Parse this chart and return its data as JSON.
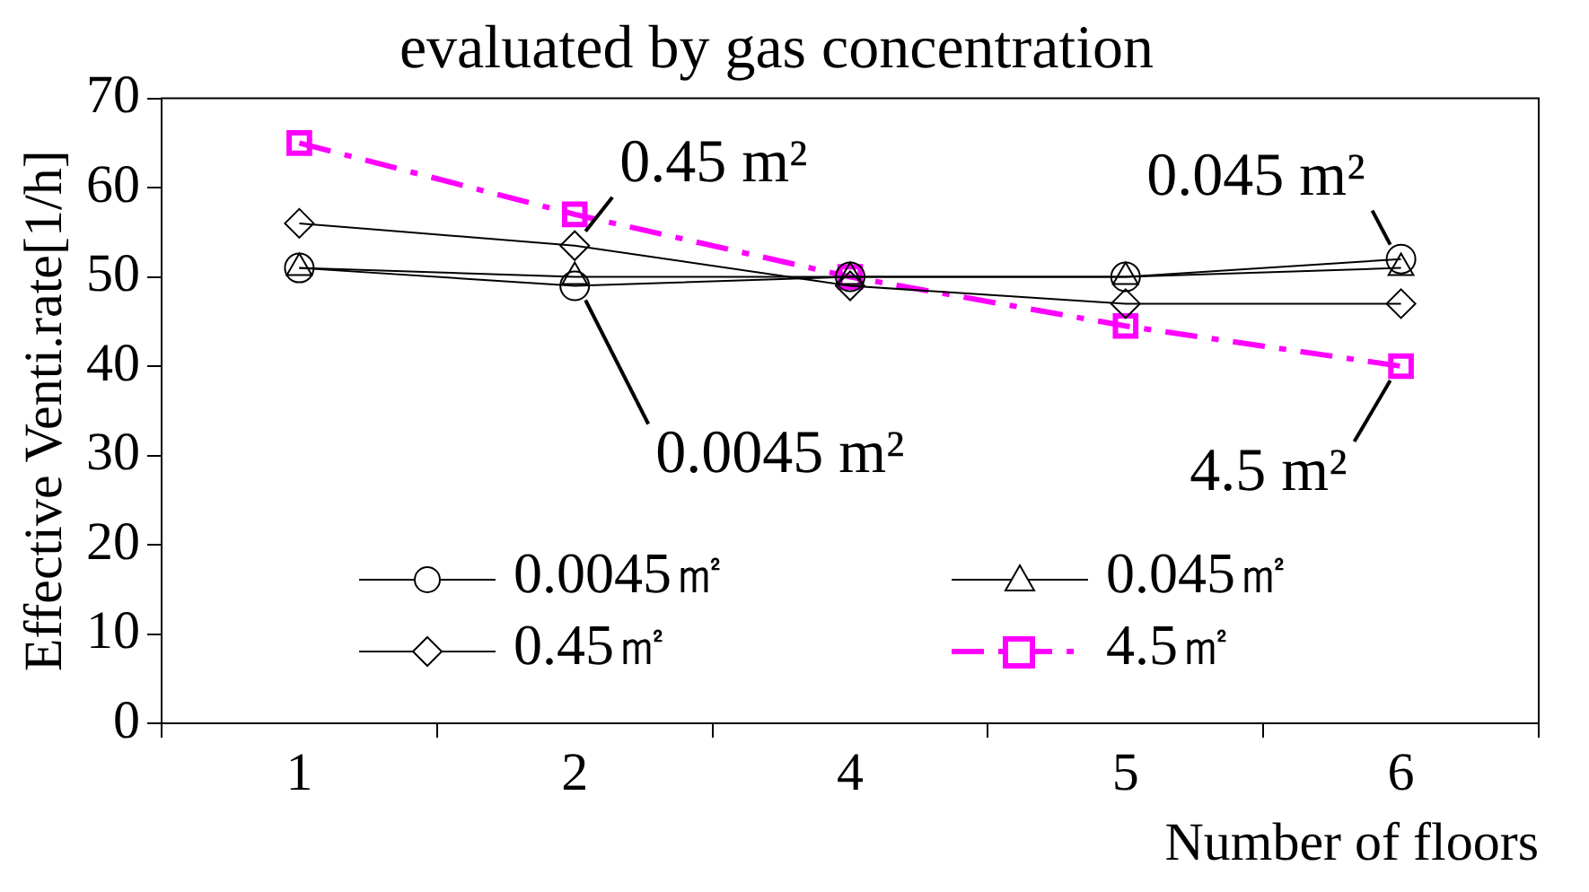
{
  "chart_data": {
    "type": "line",
    "title": "evaluated by gas concentration",
    "xlabel": "Number of floors",
    "ylabel": "Effective Venti.rate[1/h]",
    "categories": [
      "1",
      "2",
      "4",
      "5",
      "6"
    ],
    "series": [
      {
        "name": "0.0045㎡",
        "color": "#000000",
        "marker": "circle",
        "line_style": "solid",
        "values": [
          51,
          49,
          50,
          50,
          52
        ]
      },
      {
        "name": "0.045㎡",
        "color": "#000000",
        "marker": "triangle",
        "line_style": "solid",
        "values": [
          51,
          50,
          50,
          50,
          51
        ]
      },
      {
        "name": "0.45㎡",
        "color": "#000000",
        "marker": "diamond",
        "line_style": "solid",
        "values": [
          56,
          53.5,
          49,
          47,
          47
        ]
      },
      {
        "name": "4.5㎡",
        "color": "#ff00ff",
        "marker": "square",
        "line_style": "dashed",
        "values": [
          65,
          57,
          50,
          44.5,
          40
        ]
      }
    ],
    "annotations": [
      {
        "text": "0.45 m²",
        "x": "2",
        "y": 53.5
      },
      {
        "text": "0.045 m²",
        "x": "6",
        "y": 52
      },
      {
        "text": "0.0045 m²",
        "x": "2",
        "y": 49
      },
      {
        "text": "4.5 m²",
        "x": "6",
        "y": 40
      }
    ],
    "ylim": [
      0,
      70
    ],
    "yticks": [
      0,
      10,
      20,
      30,
      40,
      50,
      60,
      70
    ],
    "grid": false,
    "legend": "bottom"
  }
}
